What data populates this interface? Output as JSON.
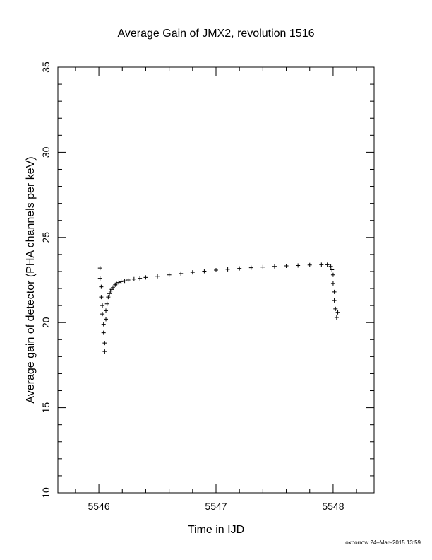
{
  "chart_data": {
    "type": "scatter",
    "title": "Average Gain of JMX2, revolution 1516",
    "xlabel": "Time in IJD",
    "ylabel": "Average gain of detector (PHA channels per keV)",
    "xlim": [
      5545.65,
      5548.35
    ],
    "ylim": [
      10,
      35
    ],
    "xticks": [
      5546,
      5547,
      5548
    ],
    "yticks": [
      10,
      15,
      20,
      25,
      30,
      35
    ],
    "grid": false,
    "marker": "+",
    "series": [
      {
        "x": [
          5546.01,
          5546.01,
          5546.02,
          5546.02,
          5546.03,
          5546.03,
          5546.04,
          5546.04,
          5546.05,
          5546.05,
          5546.06,
          5546.06,
          5546.07,
          5546.08,
          5546.09,
          5546.1,
          5546.11,
          5546.12,
          5546.13,
          5546.14,
          5546.15,
          5546.17,
          5546.19,
          5546.22,
          5546.25,
          5546.3,
          5546.35,
          5546.4,
          5546.5,
          5546.6,
          5546.7,
          5546.8,
          5546.9,
          5547.0,
          5547.1,
          5547.2,
          5547.3,
          5547.4,
          5547.5,
          5547.6,
          5547.7,
          5547.8,
          5547.9,
          5547.95,
          5547.98,
          5547.99,
          5548.0,
          5548.0,
          5548.01,
          5548.01,
          5548.02,
          5548.03,
          5548.04
        ],
        "y": [
          23.2,
          22.6,
          22.1,
          21.5,
          21.0,
          20.5,
          19.9,
          19.4,
          18.8,
          18.3,
          20.2,
          20.7,
          21.1,
          21.5,
          21.7,
          21.85,
          21.95,
          22.05,
          22.15,
          22.22,
          22.28,
          22.35,
          22.4,
          22.45,
          22.5,
          22.55,
          22.6,
          22.65,
          22.72,
          22.8,
          22.88,
          22.95,
          23.02,
          23.08,
          23.13,
          23.18,
          23.22,
          23.26,
          23.3,
          23.33,
          23.35,
          23.38,
          23.4,
          23.4,
          23.3,
          23.1,
          22.8,
          22.3,
          21.8,
          21.3,
          20.8,
          20.3,
          20.6
        ]
      }
    ]
  },
  "footer": {
    "credit": "oxborrow 24–Mar–2015 13:59"
  }
}
